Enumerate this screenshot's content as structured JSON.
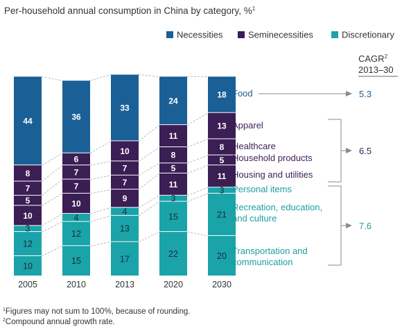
{
  "chart_data": {
    "type": "bar",
    "stacked": true,
    "title": "Per-household annual consumption in China by category, %",
    "title_sup": "1",
    "categories": [
      "2005",
      "2010",
      "2013",
      "2020",
      "2030"
    ],
    "ylim": [
      0,
      100
    ],
    "legend": {
      "placement": "top-right",
      "entries": [
        {
          "name": "Necessities",
          "color": "#1a6096"
        },
        {
          "name": "Seminecessities",
          "color": "#3a1e54"
        },
        {
          "name": "Discretionary",
          "color": "#1aa3a8"
        }
      ]
    },
    "series": [
      {
        "name": "Transportation and communication",
        "label_lines": [
          "Transportation and",
          "communication"
        ],
        "group": "Discretionary",
        "color": "#1aa3a8",
        "label_color": "#1a9ea3",
        "values": [
          10,
          15,
          17,
          22,
          20
        ]
      },
      {
        "name": "Recreation, education, and culture",
        "label_lines": [
          "Recreation, education,",
          "and culture"
        ],
        "group": "Discretionary",
        "color": "#1aa3a8",
        "label_color": "#1a9ea3",
        "values": [
          12,
          12,
          13,
          15,
          21
        ]
      },
      {
        "name": "Personal items",
        "label_lines": [
          "Personal items"
        ],
        "group": "Discretionary",
        "color": "#1aa3a8",
        "label_color": "#1a9ea3",
        "values": [
          3,
          4,
          4,
          3,
          3
        ]
      },
      {
        "name": "Housing and utilities",
        "label_lines": [
          "Housing and utilities"
        ],
        "group": "Seminecessities",
        "color": "#3a1e54",
        "label_color": "#3a1e54",
        "values": [
          10,
          10,
          9,
          11,
          11
        ]
      },
      {
        "name": "Household products",
        "label_lines": [
          "Household products"
        ],
        "group": "Seminecessities",
        "color": "#3a1e54",
        "label_color": "#3a1e54",
        "values": [
          5,
          7,
          7,
          5,
          5
        ]
      },
      {
        "name": "Healthcare",
        "label_lines": [
          "Healthcare"
        ],
        "group": "Seminecessities",
        "color": "#3a1e54",
        "label_color": "#3a1e54",
        "values": [
          7,
          7,
          7,
          8,
          8
        ]
      },
      {
        "name": "Apparel",
        "label_lines": [
          "Apparel"
        ],
        "group": "Seminecessities",
        "color": "#3a1e54",
        "label_color": "#3a1e54",
        "values": [
          8,
          6,
          10,
          11,
          13
        ]
      },
      {
        "name": "Food",
        "label_lines": [
          "Food"
        ],
        "group": "Necessities",
        "color": "#1a6096",
        "label_color": "#1a6096",
        "values": [
          44,
          36,
          33,
          24,
          18
        ]
      }
    ],
    "cagr": {
      "header_lines": [
        "CAGR",
        "2013–30"
      ],
      "header_sup": "2",
      "values": [
        {
          "value": "5.3",
          "applies_to": "Food",
          "color": "#1a6096"
        },
        {
          "value": "6.5",
          "applies_to": "Seminecessities",
          "color": "#3a1e54"
        },
        {
          "value": "7.6",
          "applies_to": "Discretionary",
          "color": "#1a9ea3"
        }
      ]
    }
  },
  "footnotes": [
    {
      "sup": "1",
      "text": "Figures may not sum to 100%, because of rounding."
    },
    {
      "sup": "2",
      "text": "Compound annual growth rate."
    }
  ]
}
